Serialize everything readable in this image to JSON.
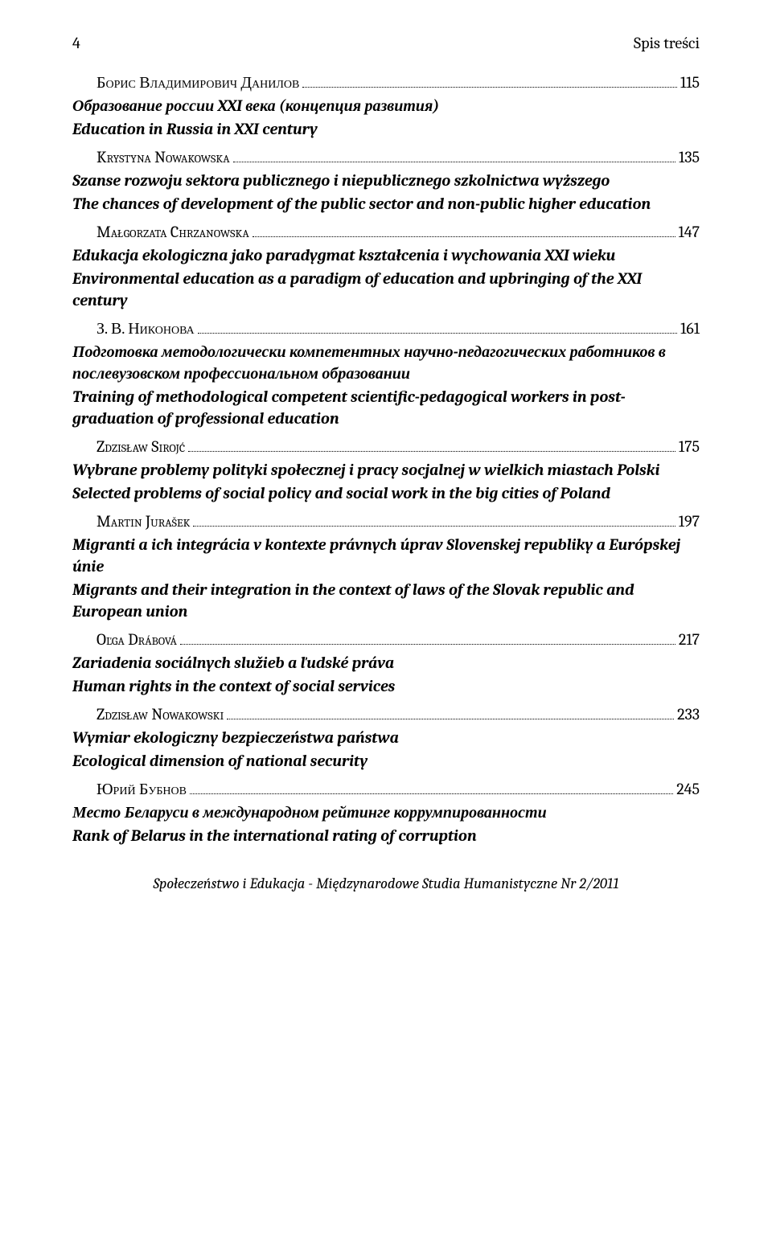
{
  "header": {
    "page_number": "4",
    "section_title": "Spis treści"
  },
  "entries": [
    {
      "author": "Борис Владимирович Данилов",
      "page": "115",
      "title_orig": "Образование россии XXI века  (концепция развития)",
      "title_trans": "Education in Russia in XXI century"
    },
    {
      "author": "Krystyna Nowakowska",
      "page": "135",
      "title_orig": "Szanse rozwoju sektora publicznego  i niepublicznego szkolnictwa wyższego",
      "title_trans": "The chances of development of the public sector  and non-public higher education"
    },
    {
      "author": "Małgorzata Chrzanowska",
      "page": "147",
      "title_orig": "Edukacja ekologiczna jako paradygmat kształcenia  i wychowania XXI wieku",
      "title_trans": "Environmental education as a paradigm of education  and upbringing of the XXI century"
    },
    {
      "author": "З. В. Никонова",
      "page": "161",
      "title_orig": "Подготовка методологически компетентных научно-педагогических работников  в послевузовском профессиональном образовании",
      "title_trans": "Training of methodological competent scientific-pedagogical workers in post-graduation of professional education"
    },
    {
      "author": "Zdzisław Sirojć",
      "page": "175",
      "title_orig": "Wybrane problemy polityki społecznej  i pracy socjalnej  w wielkich miastach Polski",
      "title_trans": "Selected problems of social policy and social work  in the big cities of Poland"
    },
    {
      "author": "Martin Jurašek",
      "page": "197",
      "title_orig": "Migranti a ich integrácia v kontexte právnych úprav Slovenskej republiky a Európskej únie",
      "title_trans": "Migrants and their integration in the context of laws  of the Slovak republic and European union"
    },
    {
      "author": "Oľga Drábová",
      "page": "217",
      "title_orig": "Zariadenia sociálnych služieb a ľudské práva",
      "title_trans": "Human rights in the context of social services"
    },
    {
      "author": "Zdzisław Nowakowski",
      "page": "233",
      "title_orig": "Wymiar ekologiczny bezpieczeństwa państwa",
      "title_trans": "Ecological dimension of national security"
    },
    {
      "author": "Юрий Бубнов",
      "page": "245",
      "title_orig": "Место Беларуси в международном  рейтинге коррумпированности",
      "title_trans": "Rank of Belarus in the international rating of corruption"
    }
  ],
  "footer": "Społeczeństwo i Edukacja - Międzynarodowe Studia Humanistyczne Nr 2/2011"
}
